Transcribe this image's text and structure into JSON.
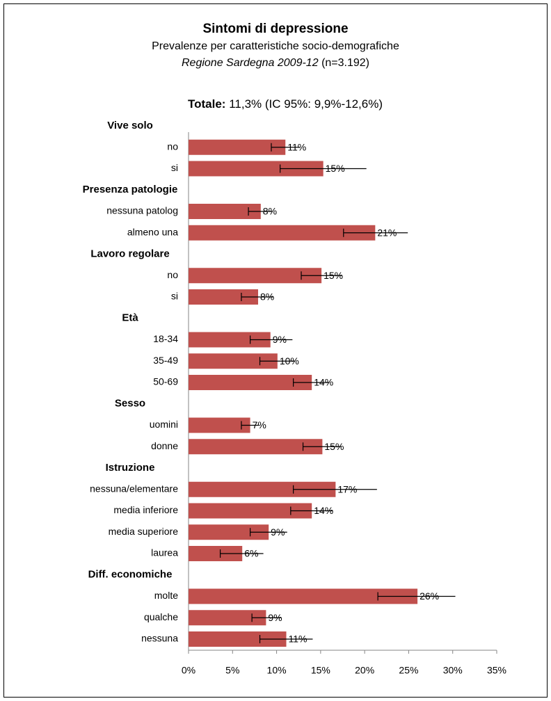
{
  "chart_data": {
    "type": "bar-errorbar",
    "title": "Sintomi di depressione",
    "subtitle": "Prevalenze per caratteristiche socio-demografiche",
    "region": "Regione Sardegna 2009-12",
    "sample": "(n=3.192)",
    "total_label": "Totale:",
    "total_text": "11,3% (IC 95%: 9,9%-12,6%)",
    "color": "#c0504d",
    "xlim": [
      0,
      35
    ],
    "xticks": [
      {
        "value": 0,
        "label": "0%"
      },
      {
        "value": 5,
        "label": "5%"
      },
      {
        "value": 10,
        "label": "10%"
      },
      {
        "value": 15,
        "label": "15%"
      },
      {
        "value": 20,
        "label": "20%"
      },
      {
        "value": 25,
        "label": "25%"
      },
      {
        "value": 30,
        "label": "30%"
      },
      {
        "value": 35,
        "label": "35%"
      }
    ],
    "groups": [
      {
        "name": "Vive solo",
        "categories": [
          "no",
          "si"
        ],
        "values": [
          11.0,
          15.3
        ],
        "value_labels": [
          "11%",
          "15%"
        ],
        "lower": [
          9.4,
          10.4
        ],
        "upper": [
          12.6,
          20.2
        ]
      },
      {
        "name": "Presenza patologie",
        "categories": [
          "nessuna patolog",
          "almeno una"
        ],
        "values": [
          8.2,
          21.2
        ],
        "value_labels": [
          "8%",
          "21%"
        ],
        "lower": [
          6.8,
          17.6
        ],
        "upper": [
          9.5,
          24.9
        ]
      },
      {
        "name": "Lavoro regolare",
        "categories": [
          "no",
          "si"
        ],
        "values": [
          15.1,
          7.9
        ],
        "value_labels": [
          "15%",
          "8%"
        ],
        "lower": [
          12.8,
          6.0
        ],
        "upper": [
          17.4,
          9.6
        ]
      },
      {
        "name": "Età",
        "categories": [
          "18-34",
          "35-49",
          "50-69"
        ],
        "values": [
          9.3,
          10.1,
          14.0
        ],
        "value_labels": [
          "9%",
          "10%",
          "14%"
        ],
        "lower": [
          7.0,
          8.1,
          11.9
        ],
        "upper": [
          11.8,
          12.1,
          16.0
        ]
      },
      {
        "name": "Sesso",
        "categories": [
          "uomini",
          "donne"
        ],
        "values": [
          7.0,
          15.2
        ],
        "value_labels": [
          "7%",
          "15%"
        ],
        "lower": [
          6.0,
          13.0
        ],
        "upper": [
          8.0,
          17.3
        ]
      },
      {
        "name": "Istruzione",
        "categories": [
          "nessuna/elementare",
          "media inferiore",
          "media superiore",
          "laurea"
        ],
        "values": [
          16.7,
          14.0,
          9.1,
          6.1
        ],
        "value_labels": [
          "17%",
          "14%",
          "9%",
          "6%"
        ],
        "lower": [
          11.9,
          11.6,
          7.0,
          3.6
        ],
        "upper": [
          21.4,
          16.4,
          11.2,
          8.5
        ]
      },
      {
        "name": "Diff. economiche",
        "categories": [
          "molte",
          "qualche",
          "nessuna"
        ],
        "values": [
          26.0,
          8.8,
          11.1
        ],
        "value_labels": [
          "26%",
          "9%",
          "11%"
        ],
        "lower": [
          21.5,
          7.2,
          8.1
        ],
        "upper": [
          30.3,
          10.5,
          14.1
        ]
      }
    ]
  }
}
